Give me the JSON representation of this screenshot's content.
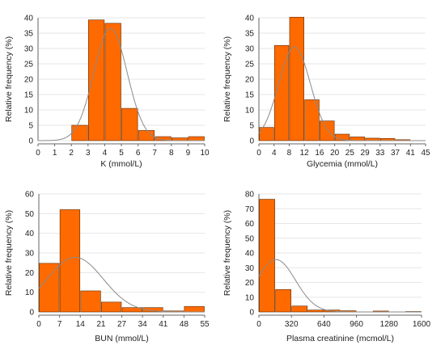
{
  "colors": {
    "bar": "#ff6a00",
    "bar_edge": "#5a2a00",
    "curve": "#8a8a8a",
    "grid": "#e6e6e6"
  },
  "chart_data": [
    {
      "type": "bar",
      "title": "",
      "xlabel": "K (mmol/L)",
      "ylabel": "Relative frequency (%)",
      "xlim": [
        0,
        10
      ],
      "ylim": [
        0,
        40
      ],
      "xticks": [
        0,
        1,
        2,
        3,
        4,
        5,
        6,
        7,
        8,
        9,
        10
      ],
      "xtick_labels": [
        "0",
        "1",
        "2",
        "3",
        "4",
        "5",
        "6",
        "7",
        "8",
        "9",
        "10"
      ],
      "yticks": [
        0,
        5,
        10,
        15,
        20,
        25,
        30,
        35,
        40
      ],
      "bins": [
        [
          2,
          3
        ],
        [
          3,
          4
        ],
        [
          4,
          5
        ],
        [
          5,
          6
        ],
        [
          6,
          7
        ],
        [
          7,
          8
        ],
        [
          8,
          9
        ],
        [
          9,
          10
        ]
      ],
      "values": [
        5,
        39.3,
        38.2,
        10.5,
        3.3,
        1.3,
        0.9,
        1.3
      ],
      "normal_fit": {
        "mean": 4.35,
        "sd": 1.0,
        "peak": 36.5
      },
      "grid": true
    },
    {
      "type": "bar",
      "title": "",
      "xlabel": "Glycemia  (mmol/L)",
      "ylabel": "Relative frequency (%)",
      "xlim": [
        0,
        11
      ],
      "ylim": [
        0,
        40
      ],
      "xticks": [
        0,
        1,
        2,
        3,
        4,
        5,
        6,
        7,
        8,
        9,
        10,
        11
      ],
      "xtick_labels": [
        "0",
        "4",
        "8",
        "12",
        "16",
        "20",
        "25",
        "29",
        "33",
        "37",
        "41",
        "45"
      ],
      "yticks": [
        0,
        5,
        10,
        15,
        20,
        25,
        30,
        35,
        40
      ],
      "bins": [
        [
          0,
          1
        ],
        [
          1,
          2
        ],
        [
          2,
          3
        ],
        [
          3,
          4
        ],
        [
          4,
          5
        ],
        [
          5,
          6
        ],
        [
          6,
          7
        ],
        [
          7,
          8
        ],
        [
          8,
          9
        ],
        [
          9,
          10
        ]
      ],
      "values": [
        4.3,
        31,
        40.2,
        13.3,
        6.4,
        2.1,
        1.2,
        0.8,
        0.7,
        0.3
      ],
      "normal_fit": {
        "mean": 2.35,
        "sd": 1.05,
        "peak": 30.5
      },
      "grid": true
    },
    {
      "type": "bar",
      "title": "",
      "xlabel": "BUN (mmol/L)",
      "ylabel": "Relative frequency (%)",
      "xlim": [
        0,
        8
      ],
      "ylim": [
        0,
        60
      ],
      "xticks": [
        0,
        1,
        2,
        3,
        4,
        5,
        6,
        7,
        8
      ],
      "xtick_labels": [
        "0",
        "7",
        "14",
        "21",
        "27",
        "34",
        "41",
        "48",
        "55"
      ],
      "yticks": [
        0,
        10,
        20,
        30,
        40,
        50,
        60
      ],
      "bins": [
        [
          0,
          1
        ],
        [
          1,
          2
        ],
        [
          2,
          3
        ],
        [
          3,
          4
        ],
        [
          4,
          5
        ],
        [
          5,
          6
        ],
        [
          6,
          7
        ],
        [
          7,
          8
        ]
      ],
      "values": [
        24.7,
        52,
        10.7,
        5,
        2.2,
        2.2,
        0.5,
        2.8
      ],
      "normal_fit": {
        "mean": 1.75,
        "sd": 1.35,
        "peak": 27.8
      },
      "grid": true
    },
    {
      "type": "bar",
      "title": "",
      "xlabel": "Plasma creatinine (mcmol/L)",
      "ylabel": "Relative frequency (%)",
      "xlim": [
        0,
        10
      ],
      "ylim": [
        0,
        80
      ],
      "xticks": [
        0,
        2,
        4,
        6,
        8,
        10
      ],
      "xtick_labels": [
        "0",
        "320",
        "640",
        "960",
        "1280",
        "1600"
      ],
      "yticks": [
        0,
        10,
        20,
        30,
        40,
        50,
        60,
        70,
        80
      ],
      "bins": [
        [
          0,
          1
        ],
        [
          1,
          2
        ],
        [
          2,
          3
        ],
        [
          3,
          4
        ],
        [
          4,
          5
        ],
        [
          5,
          6
        ],
        [
          6,
          7
        ],
        [
          7,
          8
        ],
        [
          8,
          9
        ],
        [
          9,
          10
        ]
      ],
      "values": [
        76.4,
        15.2,
        4,
        1.3,
        1.3,
        0.8,
        0,
        0.6,
        0,
        0.3
      ],
      "normal_fit": {
        "mean": 1.05,
        "sd": 1.2,
        "peak": 35.5
      },
      "grid": true
    }
  ]
}
